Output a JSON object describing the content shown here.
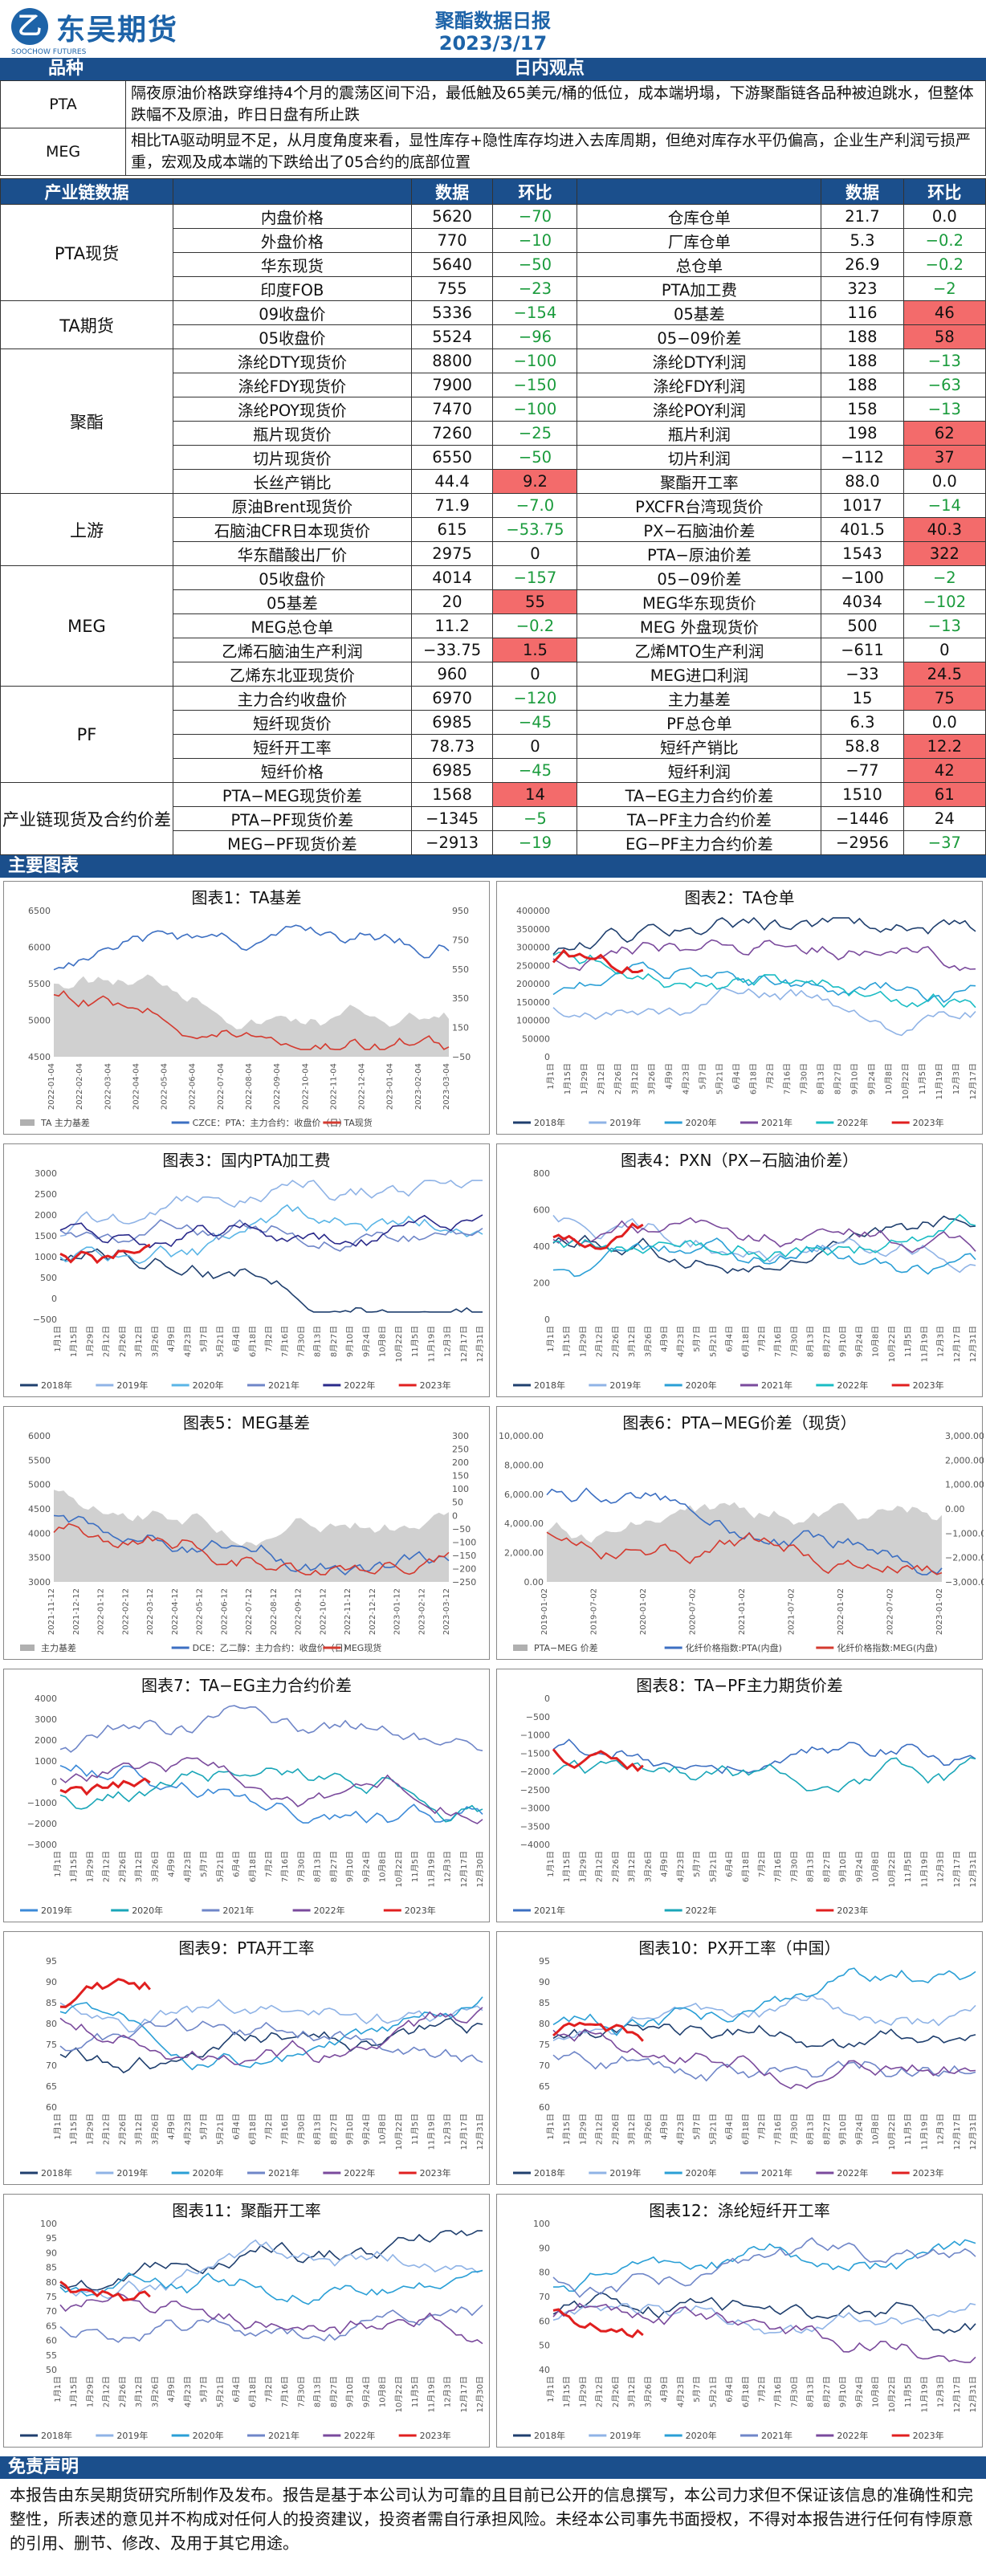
{
  "header": {
    "logo_char": "乙",
    "company": "东吴期货",
    "logo_sub": "SOOCHOW FUTURES",
    "title": "聚酯数据日报",
    "date": "2023/3/17"
  },
  "sections": {
    "variety": "品种",
    "daily_view": "日内观点",
    "industry": "产业链数据",
    "charts": "主要图表",
    "disclaimer": "免责声明"
  },
  "views": [
    {
      "label": "PTA",
      "text": "隔夜原油价格跌穿维持4个月的震荡区间下沿，最低触及65美元/桶的低位，成本端坍塌，下游聚酯链各品种被迫跳水，但整体跌幅不及原油，昨日日盘有所止跌"
    },
    {
      "label": "MEG",
      "text": "相比TA驱动明显不足，从月度角度来看，显性库存+隐性库存均进入去库周期，但绝对库存水平仍偏高，企业生产利润亏损严重，宏观及成本端的下跌给出了05合约的底部位置"
    }
  ],
  "table_head": [
    "产业链数据",
    "数据",
    "环比",
    "",
    "数据",
    "环比"
  ],
  "groups": [
    {
      "name": "PTA现货",
      "rows": [
        [
          "内盘价格",
          "5620",
          "−70",
          "g",
          "仓库仓单",
          "21.7",
          "0.0",
          ""
        ],
        [
          "外盘价格",
          "770",
          "−10",
          "g",
          "厂库仓单",
          "5.3",
          "−0.2",
          "g"
        ],
        [
          "华东现货",
          "5640",
          "−50",
          "g",
          "总仓单",
          "26.9",
          "−0.2",
          "g"
        ],
        [
          "印度FOB",
          "755",
          "−23",
          "g",
          "PTA加工费",
          "323",
          "−2",
          "g"
        ]
      ]
    },
    {
      "name": "TA期货",
      "rows": [
        [
          "09收盘价",
          "5336",
          "−154",
          "g",
          "05基差",
          "116",
          "46",
          "r"
        ],
        [
          "05收盘价",
          "5524",
          "−96",
          "g",
          "05−09价差",
          "188",
          "58",
          "r"
        ]
      ]
    },
    {
      "name": "聚酯",
      "rows": [
        [
          "涤纶DTY现货价",
          "8800",
          "−100",
          "g",
          "涤纶DTY利润",
          "188",
          "−13",
          "g"
        ],
        [
          "涤纶FDY现货价",
          "7900",
          "−150",
          "g",
          "涤纶FDY利润",
          "188",
          "−63",
          "g"
        ],
        [
          "涤纶POY现货价",
          "7470",
          "−100",
          "g",
          "涤纶POY利润",
          "158",
          "−13",
          "g"
        ],
        [
          "瓶片现货价",
          "7260",
          "−25",
          "g",
          "瓶片利润",
          "198",
          "62",
          "r"
        ],
        [
          "切片现货价",
          "6550",
          "−50",
          "g",
          "切片利润",
          "−112",
          "37",
          "r"
        ],
        [
          "长丝产销比",
          "44.4",
          "9.2",
          "r",
          "聚酯开工率",
          "88.0",
          "0.0",
          ""
        ]
      ]
    },
    {
      "name": "上游",
      "rows": [
        [
          "原油Brent现货价",
          "71.9",
          "−7.0",
          "g",
          "PXCFR台湾现货价",
          "1017",
          "−14",
          "g"
        ],
        [
          "石脑油CFR日本现货价",
          "615",
          "−53.75",
          "g",
          "PX−石脑油价差",
          "401.5",
          "40.3",
          "r"
        ],
        [
          "华东醋酸出厂价",
          "2975",
          "0",
          "",
          "PTA−原油价差",
          "1543",
          "322",
          "r"
        ]
      ]
    },
    {
      "name": "MEG",
      "rows": [
        [
          "05收盘价",
          "4014",
          "−157",
          "g",
          "05−09价差",
          "−100",
          "−2",
          "g"
        ],
        [
          "05基差",
          "20",
          "55",
          "r",
          "MEG华东现货价",
          "4034",
          "−102",
          "g"
        ],
        [
          "MEG总仓单",
          "11.2",
          "−0.2",
          "g",
          "MEG 外盘现货价",
          "500",
          "−13",
          "g"
        ],
        [
          "乙烯石脑油生产利润",
          "−33.75",
          "1.5",
          "r",
          "乙烯MTO生产利润",
          "−611",
          "0",
          ""
        ],
        [
          "乙烯东北亚现货价",
          "960",
          "0",
          "",
          "MEG进口利润",
          "−33",
          "24.5",
          "r"
        ]
      ]
    },
    {
      "name": "PF",
      "rows": [
        [
          "主力合约收盘价",
          "6970",
          "−120",
          "g",
          "主力基差",
          "15",
          "75",
          "r"
        ],
        [
          "短纤现货价",
          "6985",
          "−45",
          "g",
          "PF总仓单",
          "6.3",
          "0.0",
          ""
        ],
        [
          "短纤开工率",
          "78.73",
          "0",
          "",
          "短纤产销比",
          "58.8",
          "12.2",
          "r"
        ],
        [
          "短纤价格",
          "6985",
          "−45",
          "g",
          "短纤利润",
          "−77",
          "42",
          "r"
        ]
      ]
    },
    {
      "name": "产业链现货及合约价差",
      "rows": [
        [
          "PTA−MEG现货价差",
          "1568",
          "14",
          "r",
          "TA−EG主力合约价差",
          "1510",
          "61",
          "r"
        ],
        [
          "PTA−PF现货价差",
          "−1345",
          "−5",
          "g",
          "TA−PF主力合约价差",
          "−1446",
          "24",
          ""
        ],
        [
          "MEG−PF现货价差",
          "−2913",
          "−19",
          "g",
          "EG−PF主力合约价差",
          "−2956",
          "−37",
          "g"
        ]
      ]
    }
  ],
  "charts": [
    {
      "title": "图表1：TA基差",
      "ylabels": [
        "6500",
        "6000",
        "5500",
        "5000",
        "4500"
      ],
      "y2labels": [
        "950",
        "750",
        "550",
        "350",
        "150",
        "−50"
      ],
      "xlabels": [
        "2022-01-04",
        "2022-02-04",
        "2022-03-04",
        "2022-04-04",
        "2022-05-04",
        "2022-06-04",
        "2022-07-04",
        "2022-08-04",
        "2022-09-04",
        "2022-10-04",
        "2022-11-04",
        "2022-12-04",
        "2023-01-04",
        "2023-02-04",
        "2023-03-04"
      ],
      "legend": [
        {
          "t": "TA 主力基差",
          "c": "#b0b0b0",
          "k": "area"
        },
        {
          "t": "CZCE：PTA：主力合约：收盘价（日）",
          "c": "#3c6fc2",
          "k": "line"
        },
        {
          "t": "TA现货",
          "c": "#d43a2f",
          "k": "line"
        }
      ]
    },
    {
      "title": "图表2：TA仓单",
      "ylabels": [
        "400000",
        "350000",
        "300000",
        "250000",
        "200000",
        "150000",
        "100000",
        "50000",
        "0"
      ],
      "xlabels": [
        "1月1日",
        "1月15日",
        "1月29日",
        "2月12日",
        "2月26日",
        "3月12日",
        "3月26日",
        "4月9日",
        "4月23日",
        "5月7日",
        "5月21日",
        "6月4日",
        "6月18日",
        "7月2日",
        "7月16日",
        "7月30日",
        "8月13日",
        "8月27日",
        "9月10日",
        "9月24日",
        "10月8日",
        "10月22日",
        "11月5日",
        "11月19日",
        "12月3日",
        "12月17日"
      ],
      "legend": [
        {
          "t": "2018年",
          "c": "#1f3f6e"
        },
        {
          "t": "2019年",
          "c": "#8fb3e6"
        },
        {
          "t": "2020年",
          "c": "#2a9fd6"
        },
        {
          "t": "2021年",
          "c": "#7a4a9c"
        },
        {
          "t": "2022年",
          "c": "#1abcc4"
        },
        {
          "t": "2023年",
          "c": "#e01f1f"
        }
      ]
    },
    {
      "title": "图表3：国内PTA加工费",
      "ylabels": [
        "3000",
        "2500",
        "2000",
        "1500",
        "1000",
        "500",
        "0",
        "−500"
      ],
      "xlabels": [
        "1月1日",
        "1月15日",
        "1月29日",
        "2月12日",
        "2月26日",
        "3月12日",
        "3月26日",
        "4月9日",
        "4月23日",
        "5月7日",
        "5月21日",
        "6月4日",
        "6月18日",
        "7月2日",
        "7月16日",
        "7月30日",
        "8月13日",
        "8月27日",
        "9月10日",
        "9月24日",
        "10月8日",
        "10月22日",
        "11月5日",
        "11月19日",
        "12月3日",
        "12月17日",
        "12月31日"
      ],
      "legend": [
        {
          "t": "2018年",
          "c": "#1f3f6e"
        },
        {
          "t": "2019年",
          "c": "#8fb3e6"
        },
        {
          "t": "2020年",
          "c": "#5ab5e6"
        },
        {
          "t": "2021年",
          "c": "#6f86c8"
        },
        {
          "t": "2022年",
          "c": "#2a2a8a"
        },
        {
          "t": "2023年",
          "c": "#e01f1f"
        }
      ]
    },
    {
      "title": "图表4：PXN（PX−石脑油价差）",
      "ylabels": [
        "800",
        "600",
        "400",
        "200",
        "0"
      ],
      "xlabels": [
        "1月1日",
        "1月15日",
        "1月29日",
        "2月12日",
        "2月26日",
        "3月12日",
        "3月26日",
        "4月9日",
        "4月23日",
        "5月7日",
        "5月21日",
        "6月4日",
        "6月18日",
        "7月2日",
        "7月16日",
        "7月30日",
        "8月13日",
        "8月27日",
        "9月10日",
        "9月24日",
        "10月8日",
        "10月22日",
        "11月5日",
        "11月19日",
        "12月3日",
        "12月17日",
        "12月31日"
      ],
      "legend": [
        {
          "t": "2018年",
          "c": "#1f3f6e"
        },
        {
          "t": "2019年",
          "c": "#8fb3e6"
        },
        {
          "t": "2020年",
          "c": "#2a9fd6"
        },
        {
          "t": "2021年",
          "c": "#7a4a9c"
        },
        {
          "t": "2022年",
          "c": "#1abcc4"
        },
        {
          "t": "2023年",
          "c": "#e01f1f"
        }
      ]
    },
    {
      "title": "图表5：MEG基差",
      "ylabels": [
        "6000",
        "5500",
        "5000",
        "4500",
        "4000",
        "3500",
        "3000"
      ],
      "y2labels": [
        "300",
        "250",
        "200",
        "150",
        "100",
        "50",
        "0",
        "−50",
        "−100",
        "−150",
        "−200",
        "−250"
      ],
      "xlabels": [
        "2021-11-12",
        "2021-12-12",
        "2022-01-12",
        "2022-02-12",
        "2022-03-12",
        "2022-04-12",
        "2022-05-12",
        "2022-06-12",
        "2022-07-12",
        "2022-08-12",
        "2022-09-12",
        "2022-10-12",
        "2022-11-12",
        "2022-12-12",
        "2023-01-12",
        "2023-02-12",
        "2023-03-12"
      ],
      "legend": [
        {
          "t": "主力基差",
          "c": "#b0b0b0",
          "k": "area"
        },
        {
          "t": "DCE：乙二醇：主力合约：收盘价（日）",
          "c": "#3c6fc2",
          "k": "line"
        },
        {
          "t": "MEG现货",
          "c": "#d43a2f",
          "k": "line"
        }
      ]
    },
    {
      "title": "图表6：PTA−MEG价差（现货）",
      "ylabels": [
        "10,000.00",
        "8,000.00",
        "6,000.00",
        "4,000.00",
        "2,000.00",
        "0.00"
      ],
      "y2labels": [
        "3,000.00",
        "2,000.00",
        "1,000.00",
        "0.00",
        "−1,000.00",
        "−2,000.00",
        "−3,000.00"
      ],
      "xlabels": [
        "2019-01-02",
        "2019-07-02",
        "2020-01-02",
        "2020-07-02",
        "2021-01-02",
        "2021-07-02",
        "2022-01-02",
        "2022-07-02",
        "2023-01-02"
      ],
      "legend": [
        {
          "t": "PTA−MEG 价差",
          "c": "#b0b0b0",
          "k": "area"
        },
        {
          "t": "化纤价格指数:PTA(内盘)",
          "c": "#3c6fc2",
          "k": "line"
        },
        {
          "t": "化纤价格指数:MEG(内盘)",
          "c": "#d43a2f",
          "k": "line"
        }
      ]
    },
    {
      "title": "图表7：TA−EG主力合约价差",
      "ylabels": [
        "4000",
        "3000",
        "2000",
        "1000",
        "0",
        "−1000",
        "−2000",
        "−3000"
      ],
      "xlabels": [
        "1月1日",
        "1月15日",
        "1月29日",
        "2月12日",
        "2月26日",
        "3月12日",
        "3月26日",
        "4月9日",
        "4月23日",
        "5月7日",
        "5月21日",
        "6月4日",
        "6月18日",
        "7月2日",
        "7月16日",
        "7月30日",
        "8月13日",
        "8月27日",
        "9月10日",
        "9月24日",
        "10月8日",
        "10月22日",
        "11月5日",
        "11月19日",
        "12月3日",
        "12月17日",
        "12月30日"
      ],
      "legend": [
        {
          "t": "2019年",
          "c": "#3c8ad8"
        },
        {
          "t": "2020年",
          "c": "#1aa6b8"
        },
        {
          "t": "2021年",
          "c": "#6f86c8"
        },
        {
          "t": "2022年",
          "c": "#7a4a9c"
        },
        {
          "t": "2023年",
          "c": "#e01f1f"
        }
      ]
    },
    {
      "title": "图表8：TA−PF主力期货价差",
      "ylabels": [
        "0",
        "−500",
        "−1000",
        "−1500",
        "−2000",
        "−2500",
        "−3000",
        "−3500",
        "−4000"
      ],
      "xlabels": [
        "1月1日",
        "1月15日",
        "1月29日",
        "2月12日",
        "2月26日",
        "3月12日",
        "3月26日",
        "4月9日",
        "4月23日",
        "5月7日",
        "5月21日",
        "6月4日",
        "6月18日",
        "7月2日",
        "7月16日",
        "7月30日",
        "8月13日",
        "8月27日",
        "9月10日",
        "9月24日",
        "10月8日",
        "10月22日",
        "11月5日",
        "11月19日",
        "12月3日",
        "12月17日",
        "12月31日"
      ],
      "legend": [
        {
          "t": "2021年",
          "c": "#3c6fc2"
        },
        {
          "t": "2022年",
          "c": "#1aa6b8"
        },
        {
          "t": "2023年",
          "c": "#e01f1f"
        }
      ]
    },
    {
      "title": "图表9：PTA开工率",
      "ylabels": [
        "95",
        "90",
        "85",
        "80",
        "75",
        "70",
        "65",
        "60"
      ],
      "xlabels": [
        "1月1日",
        "1月15日",
        "1月29日",
        "2月12日",
        "2月26日",
        "3月12日",
        "3月26日",
        "4月9日",
        "4月23日",
        "5月7日",
        "5月21日",
        "6月4日",
        "6月18日",
        "7月2日",
        "7月16日",
        "7月30日",
        "8月13日",
        "8月27日",
        "9月10日",
        "9月24日",
        "10月8日",
        "10月22日",
        "11月5日",
        "11月19日",
        "12月3日",
        "12月17日",
        "12月31日"
      ],
      "legend": [
        {
          "t": "2018年",
          "c": "#1f3f6e"
        },
        {
          "t": "2019年",
          "c": "#8fb3e6"
        },
        {
          "t": "2020年",
          "c": "#2a9fd6"
        },
        {
          "t": "2021年",
          "c": "#6f86c8"
        },
        {
          "t": "2022年",
          "c": "#7a4a9c"
        },
        {
          "t": "2023年",
          "c": "#e01f1f"
        }
      ]
    },
    {
      "title": "图表10：PX开工率（中国）",
      "ylabels": [
        "95",
        "90",
        "85",
        "80",
        "75",
        "70",
        "65",
        "60"
      ],
      "xlabels": [
        "1月1日",
        "1月15日",
        "1月29日",
        "2月12日",
        "2月26日",
        "3月12日",
        "3月26日",
        "4月9日",
        "4月23日",
        "5月7日",
        "5月21日",
        "6月4日",
        "6月18日",
        "7月2日",
        "7月16日",
        "7月30日",
        "8月13日",
        "8月27日",
        "9月10日",
        "9月24日",
        "10月8日",
        "10月22日",
        "11月5日",
        "11月19日",
        "12月3日",
        "12月17日",
        "12月31日"
      ],
      "legend": [
        {
          "t": "2018年",
          "c": "#1f3f6e"
        },
        {
          "t": "2019年",
          "c": "#8fb3e6"
        },
        {
          "t": "2020年",
          "c": "#2a9fd6"
        },
        {
          "t": "2021年",
          "c": "#6f86c8"
        },
        {
          "t": "2022年",
          "c": "#7a4a9c"
        },
        {
          "t": "2023年",
          "c": "#e01f1f"
        }
      ]
    },
    {
      "title": "图表11：聚酯开工率",
      "ylabels": [
        "100",
        "95",
        "90",
        "85",
        "80",
        "75",
        "70",
        "65",
        "60",
        "55",
        "50"
      ],
      "xlabels": [
        "1月1日",
        "1月15日",
        "1月29日",
        "2月12日",
        "2月26日",
        "3月12日",
        "3月26日",
        "4月9日",
        "4月23日",
        "5月7日",
        "5月21日",
        "6月4日",
        "6月18日",
        "7月2日",
        "7月16日",
        "7月30日",
        "8月13日",
        "8月27日",
        "9月10日",
        "9月24日",
        "10月8日",
        "10月22日",
        "11月5日",
        "11月19日",
        "12月3日",
        "12月17日",
        "12月30日"
      ],
      "legend": [
        {
          "t": "2018年",
          "c": "#1f3f6e"
        },
        {
          "t": "2019年",
          "c": "#8fb3e6"
        },
        {
          "t": "2020年",
          "c": "#2a9fd6"
        },
        {
          "t": "2021年",
          "c": "#6f86c8"
        },
        {
          "t": "2022年",
          "c": "#7a4a9c"
        },
        {
          "t": "2023年",
          "c": "#e01f1f"
        }
      ]
    },
    {
      "title": "图表12：涤纶短纤开工率",
      "ylabels": [
        "100",
        "90",
        "80",
        "70",
        "60",
        "50",
        "40"
      ],
      "xlabels": [
        "1月1日",
        "1月15日",
        "1月29日",
        "2月12日",
        "2月26日",
        "3月12日",
        "3月26日",
        "4月9日",
        "4月23日",
        "5月7日",
        "5月21日",
        "6月4日",
        "6月18日",
        "7月2日",
        "7月16日",
        "7月30日",
        "8月13日",
        "8月27日",
        "9月10日",
        "9月24日",
        "10月8日",
        "10月22日",
        "11月5日",
        "11月19日",
        "12月3日",
        "12月17日",
        "12月31日"
      ],
      "legend": [
        {
          "t": "2018年",
          "c": "#1f3f6e"
        },
        {
          "t": "2019年",
          "c": "#8fb3e6"
        },
        {
          "t": "2020年",
          "c": "#2a9fd6"
        },
        {
          "t": "2021年",
          "c": "#6f86c8"
        },
        {
          "t": "2022年",
          "c": "#7a4a9c"
        },
        {
          "t": "2023年",
          "c": "#e01f1f"
        }
      ]
    }
  ],
  "disclaimer": "本报告由东吴期货研究所制作及发布。报告是基于本公司认为可靠的且目前已公开的信息撰写，本公司力求但不保证该信息的准确性和完整性，所表述的意见并不构成对任何人的投资建议，投资者需自行承担风险。未经本公司事先书面授权，不得对本报告进行任何有悖原意的引用、删节、修改、及用于其它用途。"
}
